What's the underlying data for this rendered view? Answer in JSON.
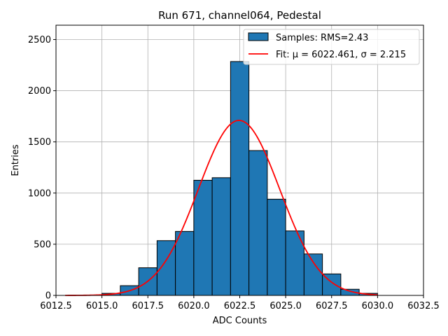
{
  "chart_data": {
    "type": "bar",
    "title": "Run 671, channel064, Pedestal",
    "xlabel": "ADC Counts",
    "ylabel": "Entries",
    "xlim": [
      6012.5,
      6032.5
    ],
    "ylim": [
      0,
      2640
    ],
    "xticks": [
      6012.5,
      6015.0,
      6017.5,
      6020.0,
      6022.5,
      6025.0,
      6027.5,
      6030.0,
      6032.5
    ],
    "xtick_labels": [
      "6012.5",
      "6015.0",
      "6017.5",
      "6020.0",
      "6022.5",
      "6025.0",
      "6027.5",
      "6030.0",
      "6032.5"
    ],
    "yticks": [
      0,
      500,
      1000,
      1500,
      2000,
      2500
    ],
    "ytick_labels": [
      "0",
      "500",
      "1000",
      "1500",
      "2000",
      "2500"
    ],
    "grid": true,
    "legend_position": "top-right",
    "bin_edges": [
      6015,
      6016,
      6017,
      6018,
      6019,
      6020,
      6021,
      6022,
      6023,
      6024,
      6025,
      6026,
      6027,
      6028,
      6029,
      6030
    ],
    "values": [
      20,
      95,
      270,
      535,
      625,
      1125,
      1150,
      2285,
      1415,
      940,
      630,
      405,
      210,
      60,
      20
    ],
    "series": [
      {
        "name": "Samples: RMS=2.43",
        "kind": "histogram",
        "color": "#1f77b4",
        "edgecolor": "#000000"
      },
      {
        "name": "Fit: μ = 6022.461, σ = 2.215",
        "kind": "gaussian",
        "color": "#ff0000",
        "mu": 6022.461,
        "sigma": 2.215,
        "amplitude": 1710,
        "x_range": [
          6013,
          6030
        ]
      }
    ]
  }
}
